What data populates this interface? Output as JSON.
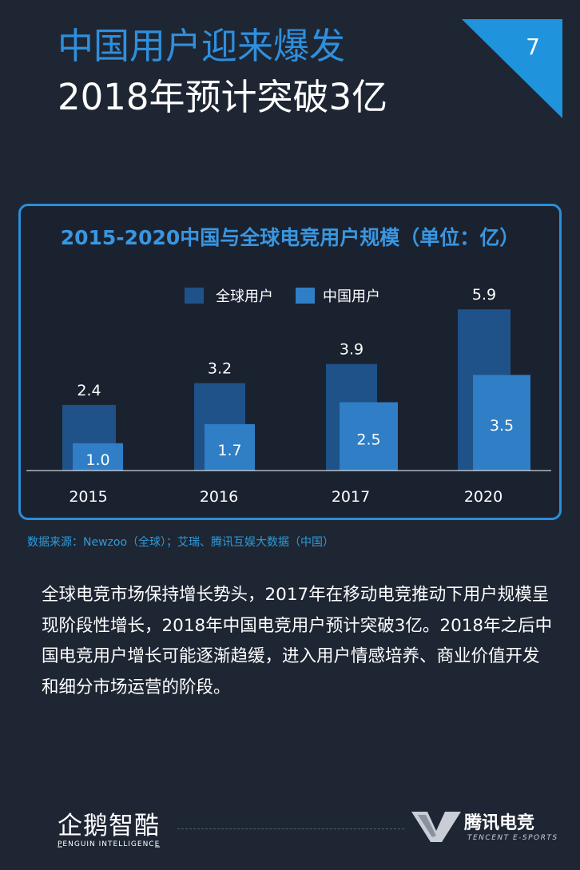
{
  "header": {
    "title_line1": "中国用户迎来爆发",
    "title_line2": "2018年预计突破3亿",
    "page_number": "7"
  },
  "chart_data": {
    "type": "bar",
    "title": "2015-2020中国与全球电竞用户规模（单位：亿）",
    "categories": [
      "2015",
      "2016",
      "2017",
      "2020"
    ],
    "series": [
      {
        "name": "全球用户",
        "values": [
          2.4,
          3.2,
          3.9,
          5.9
        ],
        "color": "#1f5288"
      },
      {
        "name": "中国用户",
        "values": [
          1.0,
          1.7,
          2.5,
          3.5
        ],
        "color": "#2f7ec6"
      }
    ],
    "data_labels": {
      "全球用户": [
        "2.4",
        "3.2",
        "3.9",
        "5.9"
      ],
      "中国用户": [
        "1.0",
        "1.7",
        "2.5",
        "3.5"
      ]
    },
    "legend_position": "top-center",
    "grid": false
  },
  "source": "数据来源：Newzoo（全球）；艾瑞、腾讯互娱大数据（中国）",
  "body_text": "全球电竞市场保持增长势头，2017年在移动电竞推动下用户规模呈现阶段性增长，2018年中国电竞用户预计突破3亿。2018年之后中国电竞用户增长可能逐渐趋缓，进入用户情感培养、商业价值开发和细分市场运营的阶段。",
  "footer": {
    "left_logo": "企鹅智酷",
    "left_logo_sub": "PENGUIN INTELLIGENCE",
    "right_logo": "腾讯电竞",
    "right_logo_sub": "TENCENT E-SPORTS"
  },
  "colors": {
    "background": "#1e2633",
    "accent": "#2b8ed8",
    "global_bar": "#1f5288",
    "china_bar": "#2f7ec6"
  }
}
